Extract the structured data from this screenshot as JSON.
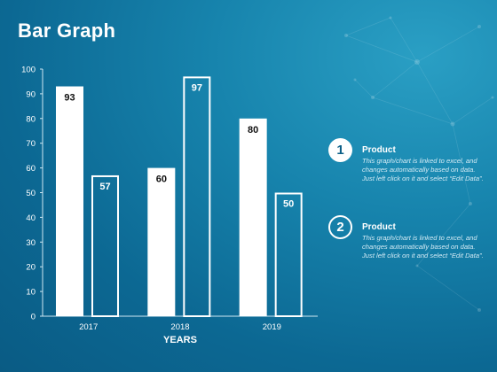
{
  "page": {
    "title": "Bar Graph"
  },
  "chart_data": {
    "type": "bar",
    "title": "Bar Graph",
    "xlabel": "YEARS",
    "ylabel": "",
    "categories": [
      "2017",
      "2018",
      "2019"
    ],
    "ylim": [
      0,
      100
    ],
    "yticks": [
      0,
      10,
      20,
      30,
      40,
      50,
      60,
      70,
      80,
      90,
      100
    ],
    "series": [
      {
        "name": "Product",
        "values": [
          93,
          60,
          80
        ],
        "style": "filled",
        "color": "#ffffff"
      },
      {
        "name": "Product",
        "values": [
          57,
          97,
          50
        ],
        "style": "outline",
        "color": "#ffffff"
      }
    ],
    "grid": false,
    "legend": "right"
  },
  "legend": [
    {
      "number": "1",
      "name": "Product",
      "description": "This graph/chart is linked to excel, and changes automatically based on data. Just left click on it and select “Edit Data”."
    },
    {
      "number": "2",
      "name": "Product",
      "description": "This graph/chart is linked to excel, and changes automatically based on data. Just left click on it and select “Edit Data”."
    }
  ]
}
